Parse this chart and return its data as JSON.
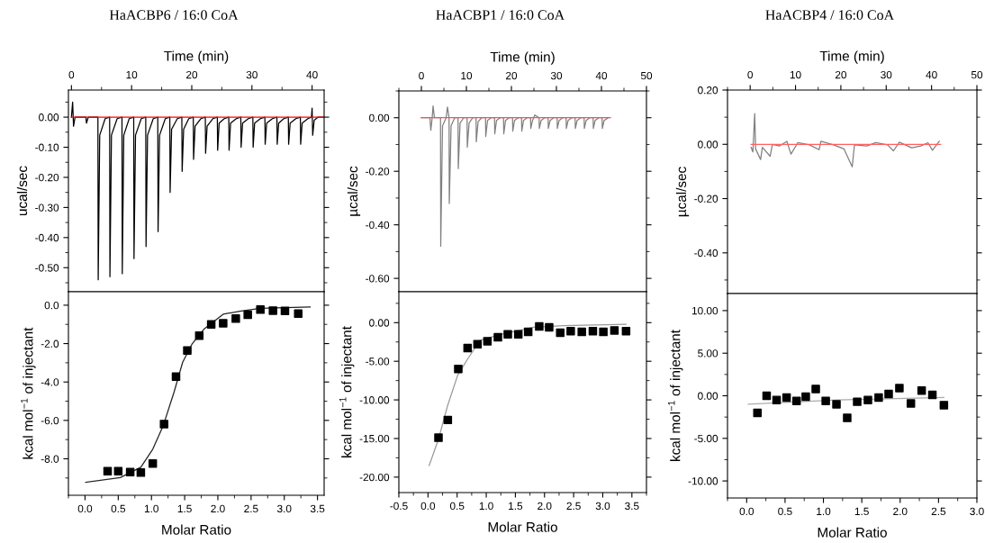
{
  "chart_data": [
    {
      "type": "line",
      "title": "HaACBP6 / 16:0 CoA",
      "xlabel": "Time (min)",
      "ylabel": "ucal/sec",
      "xlim": [
        -0.5,
        42
      ],
      "xticks": [
        0,
        10,
        20,
        30,
        40
      ],
      "ylim": [
        -0.58,
        0.09
      ],
      "yticks": [
        {
          "value": 0,
          "label": "0.00"
        },
        {
          "value": -0.1,
          "label": "-0.10"
        },
        {
          "value": -0.2,
          "label": "-0.20"
        },
        {
          "value": -0.3,
          "label": "-0.30"
        },
        {
          "value": -0.4,
          "label": "-0.40"
        },
        {
          "value": -0.5,
          "label": "-0.50"
        }
      ],
      "grid": false,
      "legend": false,
      "series": [
        {
          "color": "#000000",
          "x": [
            0,
            0.2,
            0.35,
            0.6,
            2.4,
            2.5,
            2.8,
            4.4,
            4.45,
            4.7,
            5.6,
            6.35,
            6.4,
            6.65,
            7.6,
            8.4,
            8.45,
            8.7,
            9.6,
            10.35,
            10.4,
            10.65,
            11.6,
            12.35,
            12.4,
            12.65,
            13.6,
            14.35,
            14.4,
            14.65,
            15.6,
            16.35,
            16.4,
            16.65,
            17.6,
            18.35,
            18.4,
            18.65,
            19.5,
            20.25,
            20.3,
            20.55,
            21.5,
            22.25,
            22.3,
            22.55,
            23.5,
            24.25,
            24.3,
            24.55,
            25.4,
            26.15,
            26.2,
            26.45,
            27.4,
            28.15,
            28.2,
            28.45,
            29.4,
            30.15,
            30.2,
            30.45,
            31.4,
            32.15,
            32.2,
            32.45,
            33.4,
            34.15,
            34.2,
            34.45,
            35.3,
            36.05,
            36.1,
            36.35,
            37.3,
            38.05,
            38.1,
            38.35,
            39.3,
            39.9,
            40.0,
            40.1,
            40.35,
            41,
            42
          ],
          "values": [
            0,
            0.05,
            -0.03,
            0,
            0,
            -0.02,
            0,
            0,
            -0.54,
            -0.06,
            -0.005,
            0,
            -0.53,
            -0.06,
            -0.005,
            0,
            -0.52,
            -0.06,
            -0.005,
            0,
            -0.47,
            -0.06,
            -0.005,
            0,
            -0.43,
            -0.06,
            -0.005,
            0,
            -0.38,
            -0.06,
            -0.005,
            0,
            -0.25,
            -0.04,
            -0.005,
            0,
            -0.18,
            -0.04,
            -0.005,
            0,
            -0.14,
            -0.03,
            -0.005,
            0,
            -0.12,
            -0.03,
            -0.005,
            0,
            -0.11,
            -0.02,
            -0.005,
            0,
            -0.11,
            -0.02,
            -0.005,
            0,
            -0.1,
            -0.02,
            -0.005,
            0,
            -0.1,
            -0.02,
            -0.005,
            0,
            -0.09,
            -0.02,
            -0.005,
            0,
            -0.09,
            -0.02,
            -0.005,
            0,
            -0.09,
            -0.02,
            -0.005,
            0,
            -0.09,
            -0.02,
            -0.005,
            0,
            0.03,
            -0.06,
            -0.01,
            0,
            0
          ]
        },
        {
          "color": "#ff0000",
          "x": [
            0,
            42
          ],
          "values": [
            0,
            0
          ]
        }
      ]
    },
    {
      "type": "line",
      "title": "HaACBP1 / 16:0 CoA",
      "xlabel": "Time (min)",
      "ylabel": "µcal/sec",
      "xlim": [
        -5,
        50
      ],
      "xticks": [
        0,
        10,
        20,
        30,
        40,
        50
      ],
      "ylim": [
        -0.65,
        0.1
      ],
      "yticks": [
        {
          "value": 0,
          "label": "0.00"
        },
        {
          "value": -0.2,
          "label": "-0.20"
        },
        {
          "value": -0.4,
          "label": "-0.40"
        },
        {
          "value": -0.6,
          "label": "-0.60"
        }
      ],
      "grid": false,
      "legend": false,
      "series": [
        {
          "color": "#808080",
          "x": [
            0,
            1.9,
            2.1,
            2.4,
            2.6,
            2.9,
            4.25,
            4.3,
            4.7,
            5.5,
            5.8,
            6.15,
            6.2,
            6.6,
            7.4,
            8.15,
            8.2,
            8.6,
            9.4,
            10.15,
            10.2,
            10.6,
            11.4,
            12.15,
            12.2,
            12.6,
            13.4,
            14.25,
            14.3,
            14.7,
            15.5,
            16.25,
            16.3,
            16.7,
            17.5,
            18.25,
            18.3,
            18.7,
            19.5,
            20.25,
            20.3,
            20.7,
            21.5,
            22.25,
            22.3,
            22.7,
            23.5,
            24.25,
            24.3,
            24.7,
            25.2,
            26.15,
            26.2,
            26.6,
            27.4,
            28.15,
            28.2,
            28.6,
            29.4,
            30.15,
            30.2,
            30.6,
            31.4,
            32.15,
            32.2,
            32.6,
            33.4,
            34.15,
            34.2,
            34.6,
            35.4,
            36.15,
            36.2,
            36.6,
            37.4,
            38.15,
            38.2,
            38.6,
            39.4,
            40.15,
            40.2,
            40.6,
            41.5
          ],
          "values": [
            0,
            0,
            -0.047,
            0,
            0.044,
            0,
            0,
            -0.48,
            -0.03,
            0,
            0.04,
            0,
            -0.32,
            -0.03,
            0,
            0,
            -0.19,
            -0.02,
            0,
            0,
            -0.11,
            -0.02,
            0,
            0,
            -0.09,
            -0.015,
            0,
            0,
            -0.07,
            -0.01,
            0,
            0,
            -0.06,
            -0.01,
            0,
            0,
            -0.06,
            -0.01,
            0,
            0,
            -0.05,
            -0.01,
            0,
            0,
            -0.05,
            -0.01,
            0,
            0,
            -0.04,
            -0.01,
            0.01,
            0,
            -0.04,
            -0.01,
            0,
            0,
            -0.04,
            -0.01,
            0,
            0,
            -0.04,
            -0.01,
            0,
            0,
            -0.04,
            -0.01,
            0,
            0,
            -0.04,
            -0.01,
            0,
            0,
            -0.04,
            -0.01,
            0,
            0,
            -0.04,
            -0.01,
            0,
            0,
            -0.04,
            -0.01,
            0
          ]
        },
        {
          "color": "#ff5050",
          "x": [
            0,
            42
          ],
          "values": [
            0,
            0
          ]
        }
      ]
    },
    {
      "type": "line",
      "title": "HaACBP4 / 16:0 CoA",
      "xlabel": "Time (min)",
      "ylabel": "µcal/sec",
      "xlim": [
        -5,
        50
      ],
      "xticks": [
        0,
        10,
        20,
        30,
        40,
        50
      ],
      "ylim": [
        -0.55,
        0.2
      ],
      "yticks": [
        {
          "value": 0.2,
          "label": "0.20"
        },
        {
          "value": 0,
          "label": "0.00"
        },
        {
          "value": -0.2,
          "label": "-0.20"
        },
        {
          "value": -0.4,
          "label": "-0.40"
        }
      ],
      "grid": false,
      "legend": false,
      "series": [
        {
          "color": "#808080",
          "x": [
            0.2,
            0.6,
            1.0,
            1.2,
            2.3,
            2.7,
            4.4,
            4.9,
            6.5,
            8.1,
            9.0,
            10.5,
            13.1,
            15.2,
            15.6,
            18.4,
            20.7,
            22.5,
            23.0,
            25.7,
            27.7,
            30.3,
            31.6,
            32.9,
            35.6,
            37.6,
            39.2,
            40.2,
            41.7
          ],
          "values": [
            -0.011,
            -0.028,
            0.113,
            -0.017,
            -0.056,
            -0.011,
            -0.044,
            0,
            -0.006,
            0.011,
            -0.036,
            0.006,
            -0.002,
            -0.02,
            0.011,
            -0.002,
            -0.017,
            -0.083,
            -0.002,
            -0.006,
            0.006,
            -0.002,
            -0.024,
            0.008,
            -0.013,
            -0.006,
            0.006,
            -0.022,
            0.011
          ]
        },
        {
          "color": "#ff6060",
          "x": [
            0.2,
            42
          ],
          "values": [
            0,
            0
          ]
        }
      ]
    },
    {
      "type": "scatter",
      "xlabel": "Molar Ratio",
      "ylabel": "kcal mol$^{−1}$ of injectant",
      "xlim": [
        -0.25,
        3.6
      ],
      "xticks": [
        {
          "value": 0,
          "label": "0.0"
        },
        {
          "value": 0.5,
          "label": "0.5"
        },
        {
          "value": 1,
          "label": "1.0"
        },
        {
          "value": 1.5,
          "label": "1.5"
        },
        {
          "value": 2,
          "label": "2.0"
        },
        {
          "value": 2.5,
          "label": "2.5"
        },
        {
          "value": 3,
          "label": "3.0"
        },
        {
          "value": 3.5,
          "label": "3.5"
        }
      ],
      "ylim": [
        -9.9,
        0.7
      ],
      "yticks": [
        {
          "value": 0,
          "label": "0.0"
        },
        {
          "value": -2,
          "label": "-2.0"
        },
        {
          "value": -4,
          "label": "-4.0"
        },
        {
          "value": -6,
          "label": "-6.0"
        },
        {
          "value": -8,
          "label": "-8.0"
        }
      ],
      "grid": false,
      "legend": false,
      "series": [
        {
          "type": "line",
          "color": "#222222",
          "x": [
            0.01,
            0.53,
            0.84,
            1.02,
            1.18,
            1.34,
            1.47,
            1.61,
            1.79,
            2.08,
            2.33,
            2.64,
            3.14,
            3.39
          ],
          "values": [
            -9.22,
            -8.98,
            -8.44,
            -7.5,
            -6.25,
            -4.53,
            -2.97,
            -2.03,
            -1.25,
            -0.47,
            -0.31,
            -0.16,
            -0.12,
            -0.09
          ]
        },
        {
          "type": "scatter",
          "marker": "square",
          "color": "#000000",
          "x": [
            0.34,
            0.5,
            0.68,
            0.84,
            1.02,
            1.19,
            1.37,
            1.54,
            1.72,
            1.9,
            2.08,
            2.27,
            2.45,
            2.64,
            2.83,
            3.01,
            3.21
          ],
          "values": [
            -8.64,
            -8.64,
            -8.69,
            -8.72,
            -8.25,
            -6.19,
            -3.72,
            -2.36,
            -1.59,
            -1.0,
            -0.94,
            -0.7,
            -0.5,
            -0.23,
            -0.28,
            -0.3,
            -0.44
          ]
        }
      ]
    },
    {
      "type": "scatter",
      "xlabel": "Molar Ratio",
      "ylabel": "kcal mol$^{−1}$ of injectant",
      "xlim": [
        -0.5,
        3.75
      ],
      "xticks": [
        {
          "value": -0.5,
          "label": "-0.5"
        },
        {
          "value": 0,
          "label": "0.0"
        },
        {
          "value": 0.5,
          "label": "0.5"
        },
        {
          "value": 1,
          "label": "1.0"
        },
        {
          "value": 1.5,
          "label": "1.5"
        },
        {
          "value": 2,
          "label": "2.0"
        },
        {
          "value": 2.5,
          "label": "2.5"
        },
        {
          "value": 3,
          "label": "3.0"
        },
        {
          "value": 3.5,
          "label": "3.5"
        }
      ],
      "ylim": [
        -22,
        4
      ],
      "yticks": [
        {
          "value": 0,
          "label": "0.00"
        },
        {
          "value": -5,
          "label": "-5.00"
        },
        {
          "value": -10,
          "label": "-10.00"
        },
        {
          "value": -15,
          "label": "-15.00"
        },
        {
          "value": -20,
          "label": "-20.00"
        }
      ],
      "grid": false,
      "legend": false,
      "series": [
        {
          "type": "line",
          "color": "#999999",
          "x": [
            0.02,
            0.18,
            0.33,
            0.51,
            0.69,
            0.89,
            1.2,
            1.81,
            2.32,
            3.4
          ],
          "values": [
            -18.5,
            -15.1,
            -10.9,
            -6.8,
            -4.6,
            -2.3,
            -1.6,
            -0.6,
            -0.4,
            -0.2
          ]
        },
        {
          "type": "scatter",
          "marker": "square",
          "color": "#000000",
          "x": [
            0.18,
            0.34,
            0.52,
            0.68,
            0.85,
            1.02,
            1.2,
            1.37,
            1.55,
            1.72,
            1.91,
            2.08,
            2.27,
            2.45,
            2.64,
            2.83,
            3.01,
            3.2,
            3.4
          ],
          "values": [
            -14.9,
            -12.6,
            -6.0,
            -3.3,
            -2.8,
            -2.4,
            -1.9,
            -1.5,
            -1.5,
            -1.2,
            -0.5,
            -0.6,
            -1.3,
            -1.1,
            -1.2,
            -1.1,
            -1.2,
            -1.0,
            -1.1
          ]
        }
      ]
    },
    {
      "type": "scatter",
      "xlabel": "Molar Ratio",
      "ylabel": "kcal mol$^{−1}$ of injectant",
      "xlim": [
        -0.25,
        3.0
      ],
      "xticks": [
        {
          "value": 0,
          "label": "0.0"
        },
        {
          "value": 0.5,
          "label": "0.5"
        },
        {
          "value": 1,
          "label": "1.0"
        },
        {
          "value": 1.5,
          "label": "1.5"
        },
        {
          "value": 2,
          "label": "2.0"
        },
        {
          "value": 2.5,
          "label": "2.5"
        },
        {
          "value": 3,
          "label": "3.0"
        }
      ],
      "ylim": [
        -12,
        12
      ],
      "yticks": [
        {
          "value": 10,
          "label": "10.00"
        },
        {
          "value": 5,
          "label": "5.00"
        },
        {
          "value": 0,
          "label": "0.00"
        },
        {
          "value": -5,
          "label": "-5.00"
        },
        {
          "value": -10,
          "label": "-10.00"
        }
      ],
      "grid": false,
      "legend": false,
      "series": [
        {
          "type": "line",
          "color": "#aaaaaa",
          "x": [
            0.02,
            1.18,
            2.57
          ],
          "values": [
            -1.0,
            -0.5,
            -0.2
          ]
        },
        {
          "type": "scatter",
          "marker": "square",
          "color": "#000000",
          "x": [
            0.14,
            0.26,
            0.39,
            0.52,
            0.65,
            0.77,
            0.9,
            1.03,
            1.17,
            1.31,
            1.44,
            1.58,
            1.72,
            1.85,
            1.99,
            2.14,
            2.28,
            2.42,
            2.57
          ],
          "values": [
            -2.0,
            0.0,
            -0.5,
            -0.2,
            -0.6,
            -0.1,
            0.8,
            -0.6,
            -1.0,
            -2.6,
            -0.7,
            -0.5,
            -0.2,
            0.2,
            0.9,
            -0.9,
            0.6,
            0.1,
            -1.1
          ]
        }
      ]
    }
  ]
}
